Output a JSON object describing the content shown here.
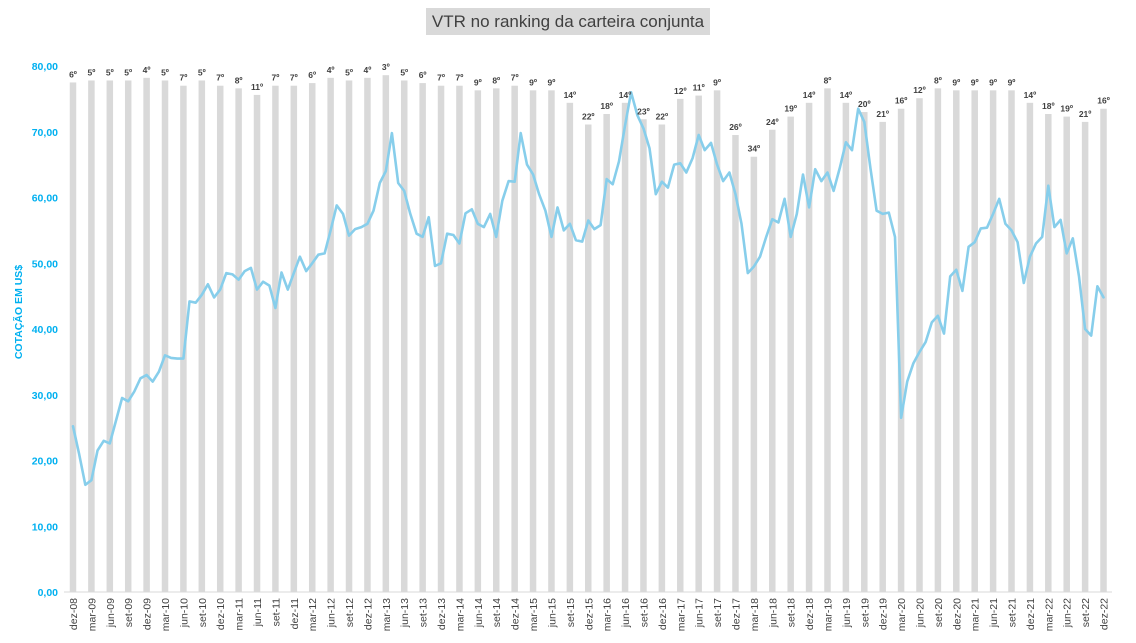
{
  "chart_data": {
    "type": "bar+line",
    "title": "VTR no ranking da carteira conjunta",
    "ylabel": "COTAÇÃO EM US$",
    "ylim": [
      0,
      80
    ],
    "yticks": [
      "0,00",
      "10,00",
      "20,00",
      "30,00",
      "40,00",
      "50,00",
      "60,00",
      "70,00",
      "80,00"
    ],
    "xtick_labels": [
      "dez-08",
      "mar-09",
      "jun-09",
      "set-09",
      "dez-09",
      "mar-10",
      "jun-10",
      "set-10",
      "dez-10",
      "mar-11",
      "jun-11",
      "set-11",
      "dez-11",
      "mar-12",
      "jun-12",
      "set-12",
      "dez-12",
      "mar-13",
      "jun-13",
      "set-13",
      "dez-13",
      "mar-14",
      "jun-14",
      "set-14",
      "dez-14",
      "mar-15",
      "jun-15",
      "set-15",
      "dez-15",
      "mar-16",
      "jun-16",
      "set-16",
      "dez-16",
      "mar-17",
      "jun-17",
      "set-17",
      "dez-17",
      "mar-18",
      "jun-18",
      "set-18",
      "dez-18",
      "mar-19",
      "jun-19",
      "set-19",
      "dez-19",
      "mar-20",
      "jun-20",
      "set-20",
      "dez-20",
      "mar-21",
      "jun-21",
      "set-21",
      "dez-21",
      "mar-22",
      "jun-22",
      "set-22",
      "dez-22"
    ],
    "bars": {
      "values": [
        77.5,
        77.8,
        77.8,
        77.8,
        78.2,
        77.8,
        77.0,
        77.8,
        77.0,
        76.6,
        75.6,
        77.0,
        77.0,
        77.4,
        78.2,
        77.8,
        78.2,
        78.6,
        77.8,
        77.4,
        77.0,
        77.0,
        76.3,
        76.6,
        77.0,
        76.3,
        76.3,
        74.4,
        71.1,
        72.7,
        74.4,
        71.9,
        71.1,
        75.0,
        75.5,
        76.3,
        69.5,
        66.2,
        70.3,
        72.3,
        74.4,
        76.6,
        74.4,
        73.0,
        71.5,
        73.5,
        75.1,
        76.6,
        76.3,
        76.3,
        76.3,
        76.3,
        74.4,
        72.7,
        72.3,
        71.5,
        73.5
      ],
      "labels": [
        "6º",
        "5º",
        "5º",
        "5º",
        "4º",
        "5º",
        "7º",
        "5º",
        "7º",
        "8º",
        "11º",
        "7º",
        "7º",
        "6º",
        "4º",
        "5º",
        "4º",
        "3º",
        "5º",
        "6º",
        "7º",
        "7º",
        "9º",
        "8º",
        "7º",
        "9º",
        "9º",
        "14º",
        "22º",
        "18º",
        "14º",
        "23º",
        "22º",
        "12º",
        "11º",
        "9º",
        "26º",
        "34º",
        "24º",
        "19º",
        "14º",
        "8º",
        "14º",
        "20º",
        "21º",
        "16º",
        "12º",
        "8º",
        "9º",
        "9º",
        "9º",
        "9º",
        "14º",
        "18º",
        "19º",
        "21º",
        "16º"
      ]
    },
    "line": {
      "x": [
        0,
        0.33,
        0.67,
        1,
        1.33,
        1.67,
        2,
        2.33,
        2.67,
        3,
        3.33,
        3.67,
        4,
        4.33,
        4.67,
        5,
        5.33,
        5.67,
        6,
        6.33,
        6.67,
        7,
        7.33,
        7.67,
        8,
        8.33,
        8.67,
        9,
        9.33,
        9.67,
        10,
        10.33,
        10.67,
        11,
        11.33,
        11.67,
        12,
        12.33,
        12.67,
        13,
        13.33,
        13.67,
        14,
        14.33,
        14.67,
        15,
        15.33,
        15.67,
        16,
        16.33,
        16.67,
        17,
        17.33,
        17.67,
        18,
        18.33,
        18.67,
        19,
        19.33,
        19.67,
        20,
        20.33,
        20.67,
        21,
        21.33,
        21.67,
        22,
        22.33,
        22.67,
        23,
        23.33,
        23.67,
        24,
        24.33,
        24.67,
        25,
        25.33,
        25.67,
        26,
        26.33,
        26.67,
        27,
        27.33,
        27.67,
        28,
        28.33,
        28.67,
        29,
        29.33,
        29.67,
        30,
        30.33,
        30.67,
        31,
        31.33,
        31.67,
        32,
        32.33,
        32.67,
        33,
        33.33,
        33.67,
        34,
        34.33,
        34.67,
        35,
        35.33,
        35.67,
        36,
        36.33,
        36.67,
        37,
        37.33,
        37.67,
        38,
        38.33,
        38.67,
        39,
        39.33,
        39.67,
        40,
        40.33,
        40.67,
        41,
        41.33,
        41.67,
        42,
        42.33,
        42.67,
        43,
        43.33,
        43.67,
        44,
        44.33,
        44.67,
        45,
        45.33,
        45.67,
        46,
        46.33,
        46.67,
        47,
        47.33,
        47.67,
        48,
        48.33,
        48.67,
        49,
        49.33,
        49.67,
        50,
        50.33,
        50.67,
        51,
        51.33,
        51.67,
        52,
        52.33,
        52.67,
        53,
        53.33,
        53.67,
        54,
        54.33,
        54.67,
        55,
        55.33,
        55.67,
        56
      ],
      "values": [
        25.2,
        21.0,
        16.3,
        17.0,
        21.5,
        23.0,
        22.6,
        26.0,
        29.5,
        29.0,
        30.5,
        32.5,
        33.0,
        32.0,
        33.5,
        36.0,
        35.6,
        35.5,
        35.5,
        44.2,
        44.0,
        45.2,
        46.8,
        44.8,
        46.0,
        48.5,
        48.3,
        47.5,
        48.8,
        49.3,
        46.0,
        47.2,
        46.6,
        43.2,
        48.6,
        46.0,
        48.5,
        51.0,
        48.8,
        50.0,
        51.3,
        51.5,
        55.0,
        58.8,
        57.5,
        54.2,
        55.2,
        55.5,
        56.0,
        58.0,
        62.2,
        64.0,
        69.8,
        62.2,
        61.0,
        57.5,
        54.5,
        54.0,
        57.0,
        49.6,
        50.0,
        54.5,
        54.3,
        53.0,
        57.6,
        58.2,
        56.0,
        55.5,
        57.5,
        54.0,
        59.5,
        62.5,
        62.4,
        69.8,
        65.0,
        63.5,
        60.5,
        58.0,
        54.0,
        58.5,
        55.0,
        56.0,
        53.5,
        53.3,
        56.5,
        55.2,
        55.8,
        62.8,
        62.0,
        65.5,
        71.0,
        76.0,
        72.5,
        70.5,
        67.5,
        60.5,
        62.4,
        61.5,
        65.0,
        65.2,
        63.8,
        66.0,
        69.5,
        67.2,
        68.3,
        65.0,
        62.5,
        63.8,
        60.5,
        56.0,
        48.5,
        49.5,
        51.0,
        54.0,
        56.7,
        56.2,
        59.8,
        54.0,
        57.5,
        63.5,
        58.5,
        64.3,
        62.5,
        63.8,
        61.0,
        64.5,
        68.4,
        67.2,
        73.5,
        71.5,
        64.5,
        58.0,
        57.5,
        57.7,
        54.0,
        26.5,
        32.0,
        34.8,
        36.5,
        38.0,
        41.0,
        42.0,
        39.3,
        48.0,
        49.0,
        45.8,
        52.5,
        53.2,
        55.3,
        55.4,
        57.5,
        59.8,
        56.0,
        55.0,
        53.2,
        47.0,
        51.0,
        53.0,
        54.0,
        61.8,
        55.5,
        56.6,
        51.5,
        53.8,
        48.0,
        40.0,
        39.0,
        46.5,
        44.8
      ]
    },
    "colors": {
      "bar": "#d9d9d9",
      "line": "#87ceeb",
      "axis_text": "#00b0f0",
      "title_bg": "#d9d9d9"
    }
  }
}
